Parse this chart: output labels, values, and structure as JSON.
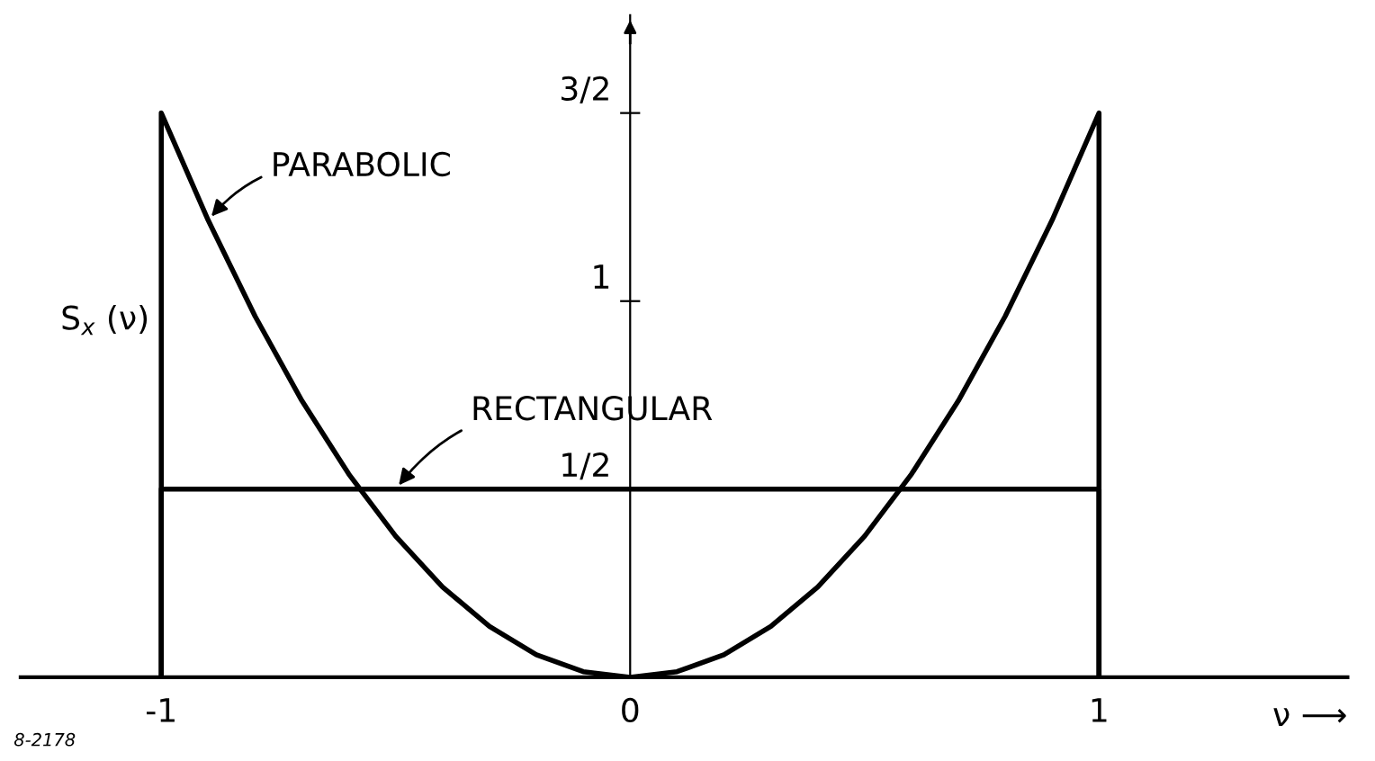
{
  "chart_data": {
    "type": "line",
    "ylabel": "S$_{x}$ (ν)",
    "xlabel": "ν ⟶",
    "series": [
      {
        "name": null,
        "color": "#000000",
        "x": [
          -1,
          -1,
          -0.9,
          -0.8,
          -0.7,
          -0.6,
          -0.5,
          -0.4,
          -0.3,
          -0.2,
          -0.1,
          0,
          0.1,
          0.2,
          0.3,
          0.4,
          0.5,
          0.6,
          0.7,
          0.8,
          0.9,
          1,
          1
        ],
        "values": [
          0,
          1.5,
          1.215,
          0.96,
          0.735,
          0.54,
          0.375,
          0.24,
          0.135,
          0.06,
          0.015,
          0,
          0.015,
          0.06,
          0.135,
          0.24,
          0.375,
          0.54,
          0.735,
          0.96,
          1.215,
          1.5,
          0
        ]
      },
      {
        "name": null,
        "color": "#000000",
        "x": [
          -1,
          -1,
          1,
          1
        ],
        "values": [
          0,
          0.5,
          0.5,
          0
        ]
      }
    ],
    "xlim": [
      -1.3,
      1.53
    ],
    "ylim": [
      0,
      1.76
    ],
    "xticks": [
      -1,
      0,
      1
    ],
    "yticks": [
      {
        "value": 0.5,
        "label": "1/2"
      },
      1,
      {
        "value": 1.5,
        "label": "3/2"
      }
    ],
    "annotations": [
      {
        "text": "PARABOLIC",
        "x": -0.9,
        "y": 1.215
      },
      {
        "text": "RECTANGULAR",
        "x": -0.5,
        "y": 0.5
      },
      "8-2178"
    ],
    "grid": false,
    "legend": false,
    "marker": "none",
    "line_style": "solid"
  }
}
